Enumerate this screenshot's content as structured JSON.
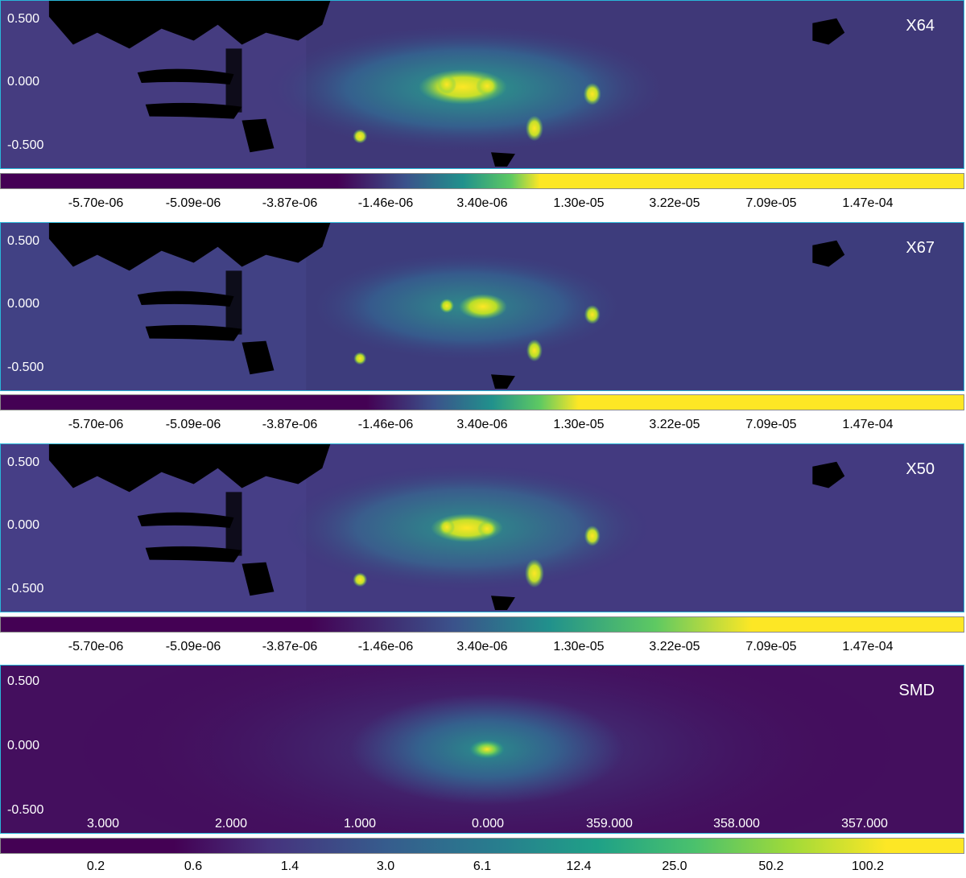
{
  "panels": [
    {
      "label": "X64",
      "y_ticks": [
        "0.500",
        "0.000",
        "-0.500"
      ],
      "x_ticks": []
    },
    {
      "label": "X67",
      "y_ticks": [
        "0.500",
        "0.000",
        "-0.500"
      ],
      "x_ticks": []
    },
    {
      "label": "X50",
      "y_ticks": [
        "0.500",
        "0.000",
        "-0.500"
      ],
      "x_ticks": []
    },
    {
      "label": "SMD",
      "y_ticks": [
        "0.500",
        "0.000",
        "-0.500"
      ],
      "x_ticks": [
        "3.000",
        "2.000",
        "1.000",
        "0.000",
        "359.000",
        "358.000",
        "357.000"
      ]
    }
  ],
  "colorbars": [
    {
      "ticks": [
        "-5.70e-06",
        "-5.09e-06",
        "-3.87e-06",
        "-1.46e-06",
        "3.40e-06",
        "1.30e-05",
        "3.22e-05",
        "7.09e-05",
        "1.47e-04"
      ]
    },
    {
      "ticks": [
        "-5.70e-06",
        "-5.09e-06",
        "-3.87e-06",
        "-1.46e-06",
        "3.40e-06",
        "1.30e-05",
        "3.22e-05",
        "7.09e-05",
        "1.47e-04"
      ]
    },
    {
      "ticks": [
        "-5.70e-06",
        "-5.09e-06",
        "-3.87e-06",
        "-1.46e-06",
        "3.40e-06",
        "1.30e-05",
        "3.22e-05",
        "7.09e-05",
        "1.47e-04"
      ]
    },
    {
      "ticks": [
        "0.2",
        "0.6",
        "1.4",
        "3.0",
        "6.1",
        "12.4",
        "25.0",
        "50.2",
        "100.2"
      ]
    }
  ],
  "colors": {
    "frame": "#29b6d8",
    "background_map": "#3e3a7c",
    "colormap": [
      "#440154",
      "#3b528b",
      "#21918c",
      "#5ec962",
      "#fde725"
    ]
  }
}
